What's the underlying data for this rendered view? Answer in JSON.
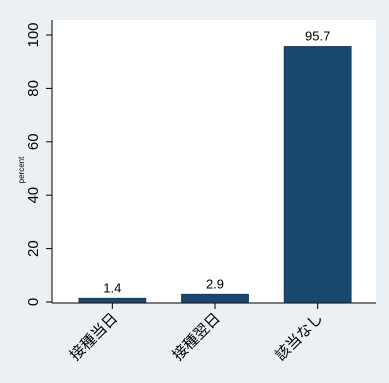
{
  "chart_data": {
    "type": "bar",
    "categories": [
      "接種当日",
      "接種翌日",
      "該当なし"
    ],
    "values": [
      1.4,
      2.9,
      95.7
    ],
    "value_labels": [
      "1.4",
      "2.9",
      "95.7"
    ],
    "ylabel": "percent",
    "ylim": [
      0,
      100
    ],
    "yticks": [
      0,
      20,
      40,
      60,
      80,
      100
    ],
    "ytick_labels": [
      "0",
      "20",
      "40",
      "60",
      "80",
      "100"
    ],
    "bar_color": "#1a476f",
    "background_color": "#eaf0f3",
    "plot_background_color": "#ffffff",
    "grid": false,
    "legend": "none"
  }
}
